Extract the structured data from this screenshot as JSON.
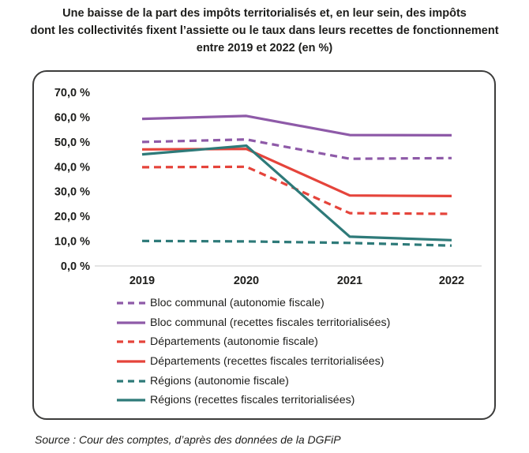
{
  "title_lines": [
    "Une baisse de la part des impôts territorialisés et, en leur sein, des impôts",
    "dont les collectivités fixent l’assiette ou le taux dans leurs recettes de fonctionnement",
    "entre 2019 et 2022 (en %)"
  ],
  "source": "Source : Cour des comptes, d’après des données de la DGFiP",
  "chart_data": {
    "type": "line",
    "title": "Une baisse de la part des impôts territorialisés et, en leur sein, des impôts dont les collectivités fixent l’assiette ou le taux dans leurs recettes de fonctionnement entre 2019 et 2022 (en %)",
    "x": [
      "2019",
      "2020",
      "2021",
      "2022"
    ],
    "ylim": [
      0,
      70
    ],
    "yticks": [
      "0,0 %",
      "10,0 %",
      "20,0 %",
      "30,0 %",
      "40,0 %",
      "50,0 %",
      "60,0 %",
      "70,0 %"
    ],
    "grid": false,
    "legend_position": "bottom",
    "series": [
      {
        "name": "Bloc communal (autonomie fiscale)",
        "values": [
          50.0,
          51.0,
          43.2,
          43.5
        ],
        "color": "#8e5aa8",
        "dashed": true
      },
      {
        "name": "Bloc communal (recettes fiscales territorialisées)",
        "values": [
          59.3,
          60.5,
          52.8,
          52.7
        ],
        "color": "#8e5aa8",
        "dashed": false
      },
      {
        "name": "Départements (autonomie fiscale)",
        "values": [
          39.8,
          40.0,
          21.3,
          21.0
        ],
        "color": "#e5443b",
        "dashed": true
      },
      {
        "name": "Départements (recettes fiscales territorialisées)",
        "values": [
          47.0,
          47.2,
          28.4,
          28.2
        ],
        "color": "#e5443b",
        "dashed": false
      },
      {
        "name": "Régions (autonomie fiscale)",
        "values": [
          10.1,
          9.9,
          9.3,
          8.2
        ],
        "color": "#2e7a79",
        "dashed": true
      },
      {
        "name": "Régions (recettes fiscales territorialisées)",
        "values": [
          45.0,
          48.5,
          11.8,
          10.4
        ],
        "color": "#2e7a79",
        "dashed": false
      }
    ]
  }
}
